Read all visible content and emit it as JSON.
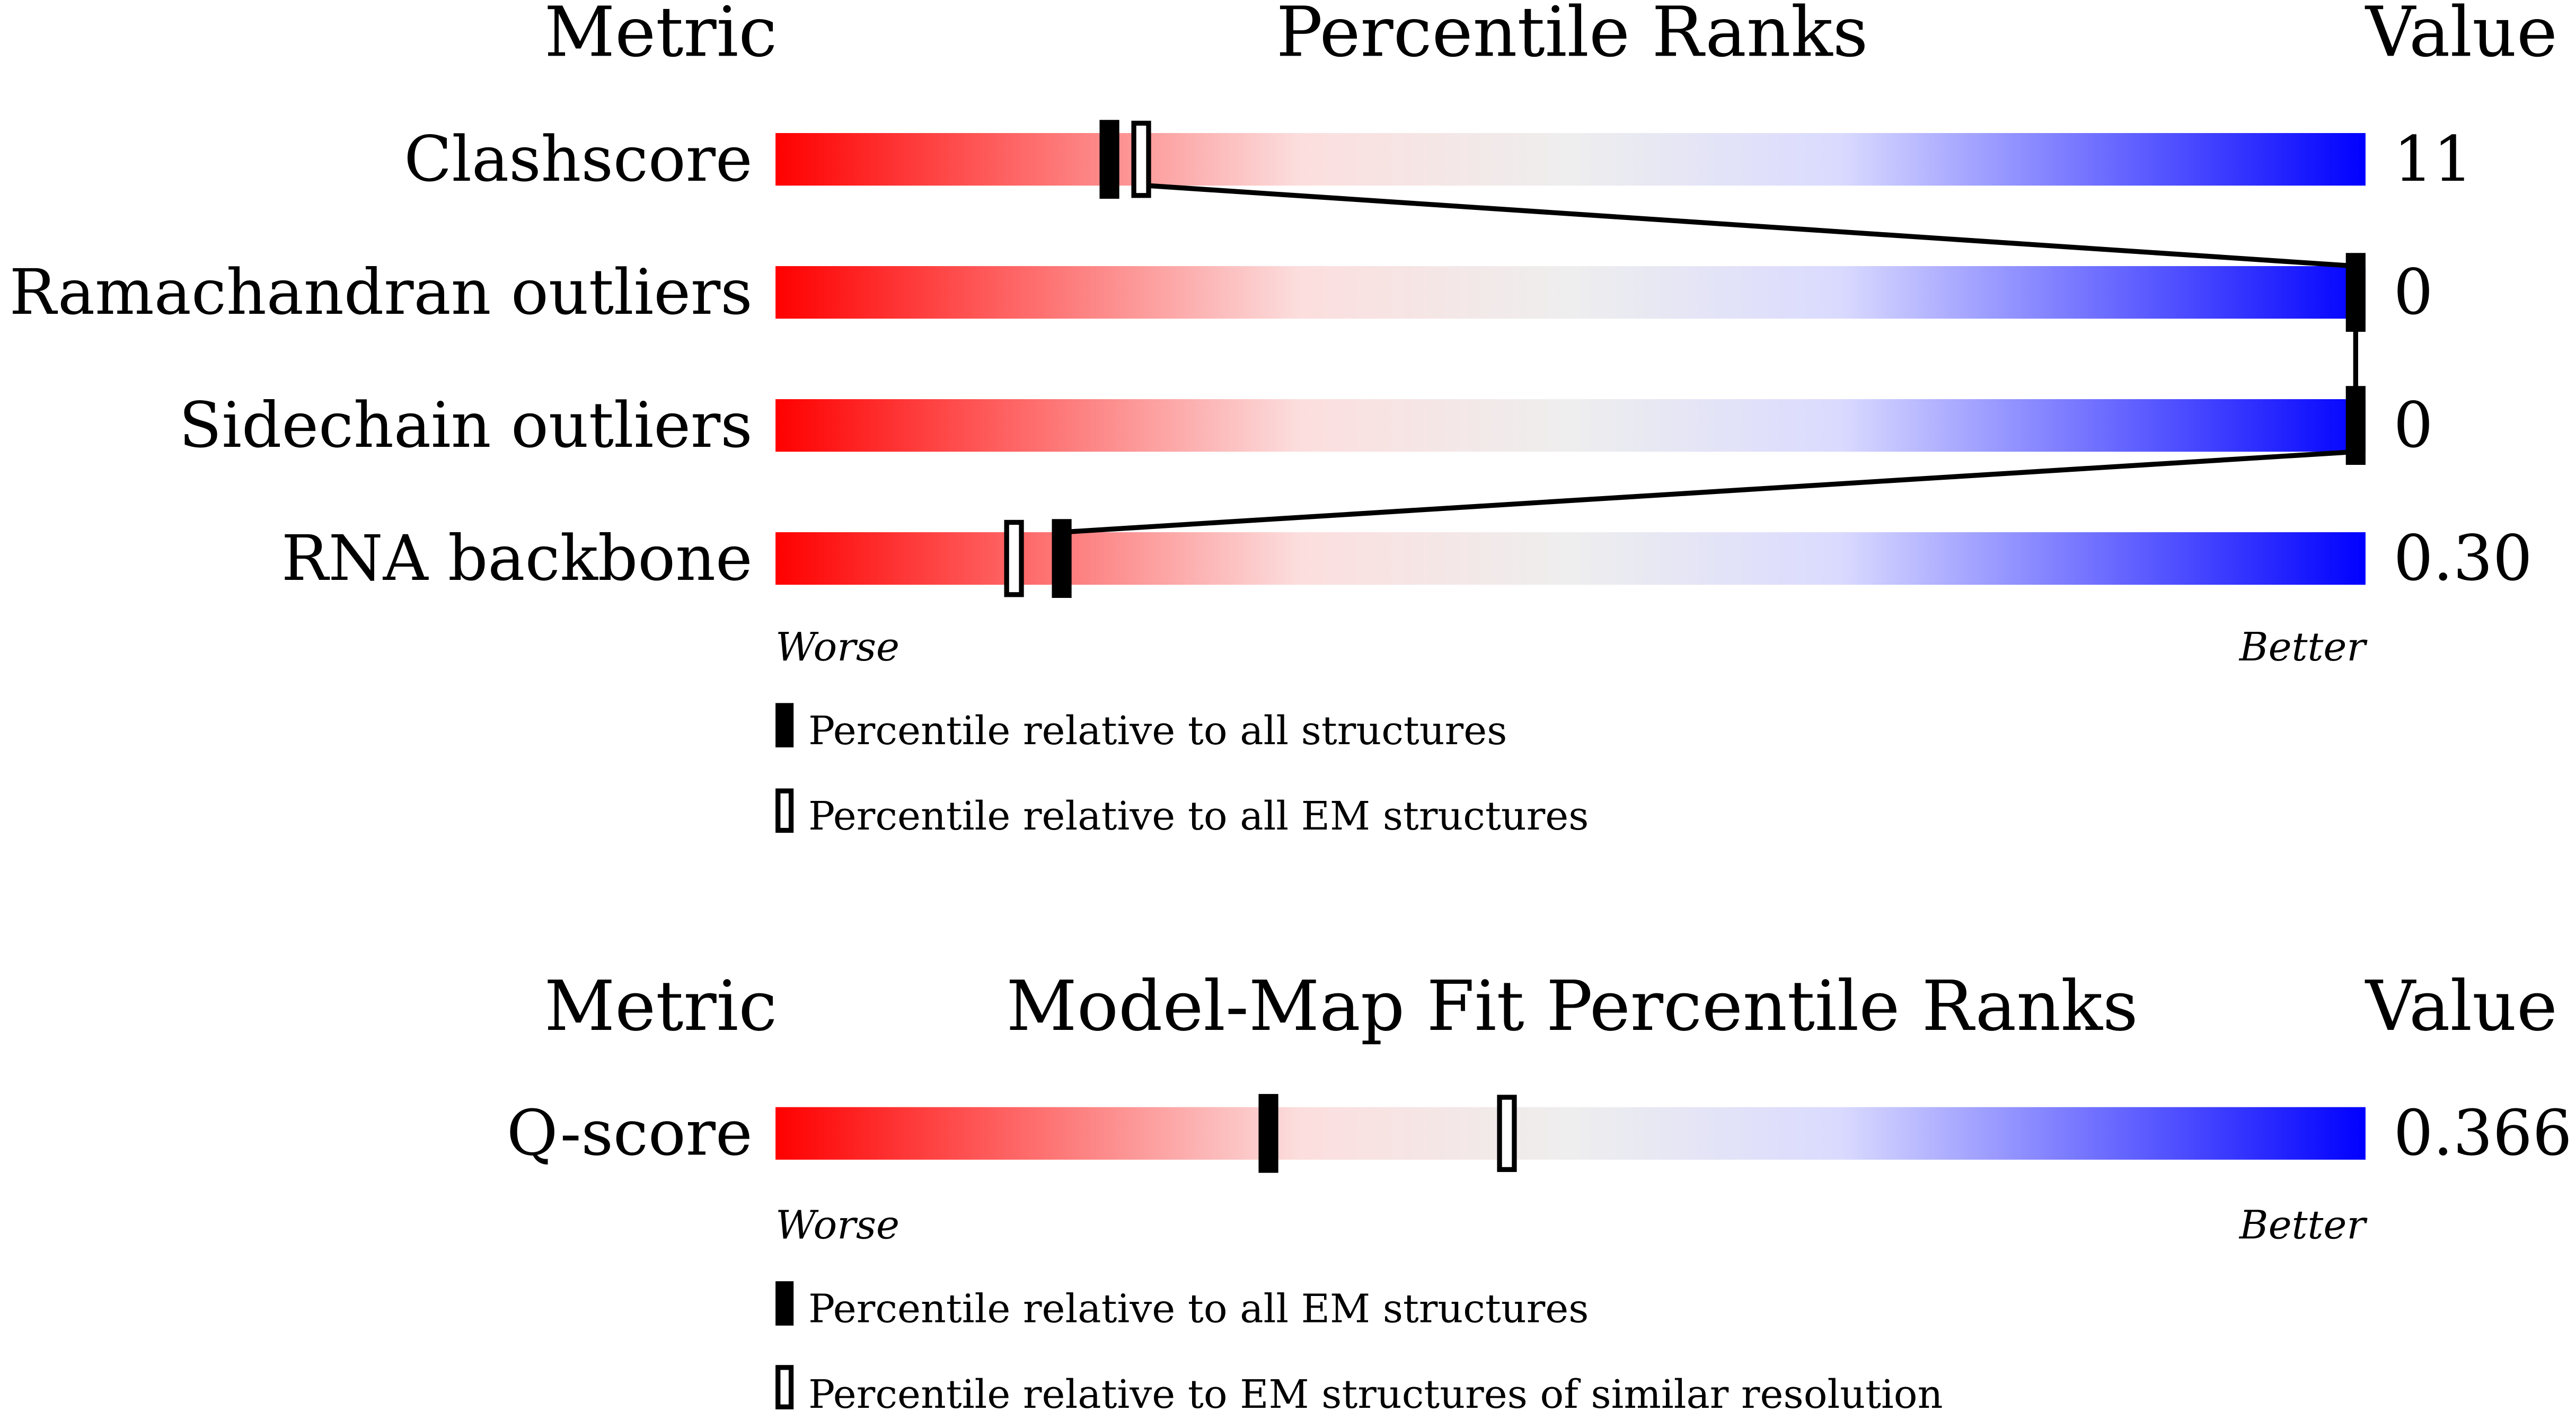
{
  "chart_data": [
    {
      "type": "percentile-slider",
      "headers": {
        "metric": "Metric",
        "title": "Percentile Ranks",
        "value": "Value"
      },
      "axis": {
        "left": "Worse",
        "right": "Better",
        "range": [
          0,
          100
        ]
      },
      "legend": {
        "filled": "Percentile relative to all structures",
        "open": "Percentile relative to all EM structures"
      },
      "rows": [
        {
          "metric": "Clashscore",
          "value": "11",
          "filled_percentile": 21,
          "open_percentile": 23
        },
        {
          "metric": "Ramachandran outliers",
          "value": "0",
          "filled_percentile": 100,
          "open_percentile": 100
        },
        {
          "metric": "Sidechain outliers",
          "value": "0",
          "filled_percentile": 100,
          "open_percentile": 100
        },
        {
          "metric": "RNA backbone",
          "value": "0.30",
          "filled_percentile": 18,
          "open_percentile": 15
        }
      ]
    },
    {
      "type": "percentile-slider",
      "headers": {
        "metric": "Metric",
        "title": "Model-Map Fit Percentile Ranks",
        "value": "Value"
      },
      "axis": {
        "left": "Worse",
        "right": "Better",
        "range": [
          0,
          100
        ]
      },
      "legend": {
        "filled": "Percentile relative to all EM structures",
        "open": "Percentile relative to EM structures of similar resolution"
      },
      "rows": [
        {
          "metric": "Q-score",
          "value": "0.366",
          "filled_percentile": 31,
          "open_percentile": 46
        }
      ]
    }
  ],
  "colors": {
    "worse": "#ff0000",
    "mid": "#eeeeee",
    "better": "#0000ff",
    "marker": "#000000"
  }
}
